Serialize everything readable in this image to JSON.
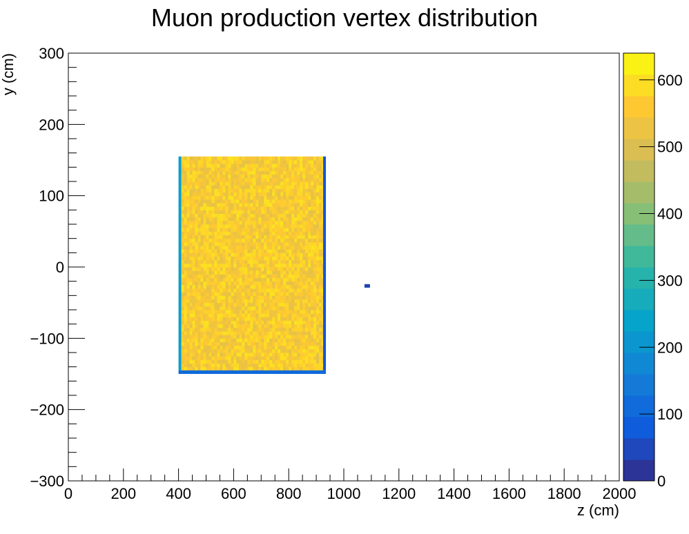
{
  "chart_data": {
    "type": "heatmap",
    "title": "Muon production vertex distribution",
    "xlabel": "z (cm)",
    "ylabel": "y (cm)",
    "xlim": [
      0,
      2000
    ],
    "ylim": [
      -300,
      300
    ],
    "x_ticks": [
      "0",
      "200",
      "400",
      "600",
      "800",
      "1000",
      "1200",
      "1400",
      "1600",
      "1800",
      "2000"
    ],
    "y_ticks": [
      "300",
      "200",
      "100",
      "0",
      "−100",
      "−200",
      "−300"
    ],
    "colorbar": {
      "range": [
        0,
        640
      ],
      "ticks": [
        "0",
        "100",
        "200",
        "300",
        "400",
        "500",
        "600"
      ],
      "palette": [
        "#352a87",
        "#0f5cdd",
        "#1481d6",
        "#06a4ca",
        "#2eb7a4",
        "#87bf77",
        "#d1bb59",
        "#fec832",
        "#f9fb0e"
      ]
    },
    "regions": [
      {
        "name": "main volume",
        "z_range": [
          410,
          925
        ],
        "y_range": [
          -145,
          155
        ],
        "value": 560
      },
      {
        "name": "left edge",
        "z_range": [
          400,
          410
        ],
        "y_range": [
          -145,
          155
        ],
        "value": 230
      },
      {
        "name": "right edge",
        "z_range": [
          925,
          935
        ],
        "y_range": [
          -145,
          155
        ],
        "value": 70
      },
      {
        "name": "bottom edge",
        "z_range": [
          400,
          935
        ],
        "y_range": [
          -150,
          -145
        ],
        "value": 110
      },
      {
        "name": "isolated bin",
        "z_range": [
          1075,
          1095
        ],
        "y_range": [
          -29,
          -24
        ],
        "value": 40
      }
    ]
  }
}
